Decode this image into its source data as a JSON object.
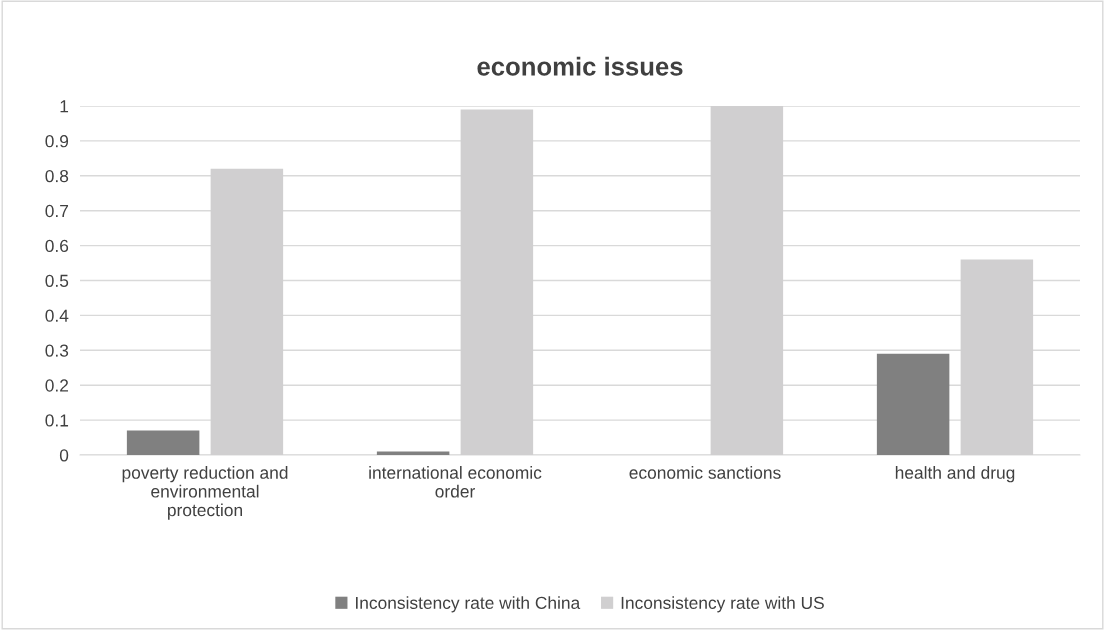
{
  "chart_data": {
    "type": "bar",
    "title": "economic issues",
    "categories": [
      "poverty reduction and environmental protection",
      "international economic order",
      "economic sanctions",
      "health and drug"
    ],
    "series": [
      {
        "name": "Inconsistency rate with China",
        "color": "#808080",
        "values": [
          0.07,
          0.01,
          0,
          0.29
        ]
      },
      {
        "name": "Inconsistency rate with US",
        "color": "#d0cfd0",
        "values": [
          0.82,
          0.99,
          1.0,
          0.56
        ]
      }
    ],
    "ylim": [
      0,
      1
    ],
    "yticks": [
      0,
      0.1,
      0.2,
      0.3,
      0.4,
      0.5,
      0.6,
      0.7,
      0.8,
      0.9,
      1
    ],
    "grid": "y",
    "legend": "bottom"
  }
}
